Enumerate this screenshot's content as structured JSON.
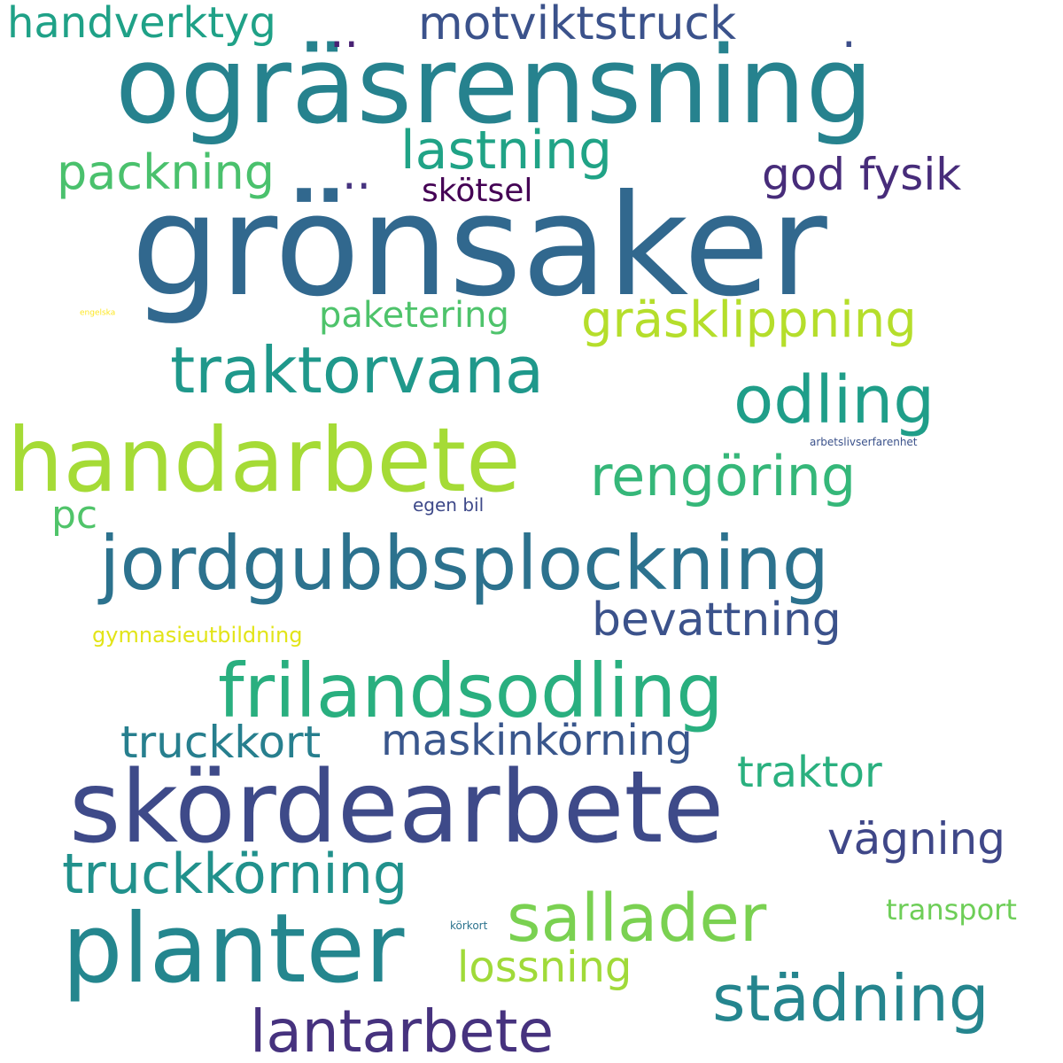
{
  "word_cloud": {
    "words": {
      "gronsaker": {
        "text": "grönsaker",
        "color": "#31688e"
      },
      "ograsrensning": {
        "text": "ogräsrensning",
        "color": "#26828e"
      },
      "skordearbete": {
        "text": "skördearbete",
        "color": "#3e4a89"
      },
      "planter": {
        "text": "planter",
        "color": "#24868e"
      },
      "handarbete": {
        "text": "handarbete",
        "color": "#a5db36"
      },
      "jordgubbsplockning": {
        "text": "jordgubbsplockning",
        "color": "#2c728e"
      },
      "frilandsodling": {
        "text": "frilandsodling",
        "color": "#29af7f"
      },
      "traktorvana": {
        "text": "traktorvana",
        "color": "#1f988b"
      },
      "odling": {
        "text": "odling",
        "color": "#1f9e89"
      },
      "sallader": {
        "text": "sallader",
        "color": "#7ad151"
      },
      "stadning": {
        "text": "städning",
        "color": "#25858e"
      },
      "lantarbete": {
        "text": "lantarbete",
        "color": "#46327e"
      },
      "rengoring": {
        "text": "rengöring",
        "color": "#35b779"
      },
      "truckkorning": {
        "text": "truckkörning",
        "color": "#21918c"
      },
      "lastning": {
        "text": "lastning",
        "color": "#20a386"
      },
      "grasklippning": {
        "text": "gräsklippning",
        "color": "#b5de2b"
      },
      "packning": {
        "text": "packning",
        "color": "#4ac16d"
      },
      "motviktstruck": {
        "text": "motviktstruck",
        "color": "#3b528b"
      },
      "handverktyg": {
        "text": "handverktyg",
        "color": "#1fa187"
      },
      "godfysik": {
        "text": "god fysik",
        "color": "#472c7a"
      },
      "bevattning": {
        "text": "bevattning",
        "color": "#3b528b"
      },
      "vagning": {
        "text": "vägning",
        "color": "#3f4788"
      },
      "truckkort": {
        "text": "truckkort",
        "color": "#277f8e"
      },
      "maskinkorning": {
        "text": "maskinkörning",
        "color": "#39568c"
      },
      "traktor": {
        "text": "traktor",
        "color": "#2ab07f"
      },
      "lossning": {
        "text": "lossning",
        "color": "#a0da39"
      },
      "paketering": {
        "text": "paketering",
        "color": "#4ec36b"
      },
      "pc": {
        "text": "pc",
        "color": "#50c46a"
      },
      "skotsel": {
        "text": "skötsel",
        "color": "#440154"
      },
      "transport": {
        "text": "transport",
        "color": "#6ece58"
      },
      "dots1": {
        "text": "..",
        "color": "#482173"
      },
      "dots2": {
        "text": ".",
        "color": "#3d4e8a"
      },
      "dots3": {
        "text": "..",
        "color": "#46337f"
      },
      "gymnasieutbildning": {
        "text": "gymnasieutbildning",
        "color": "#e2e418"
      },
      "egenbil": {
        "text": "egen bil",
        "color": "#3e4989"
      },
      "arbetslivserfarenhet": {
        "text": "arbetslivserfarenhet",
        "color": "#3b528b"
      },
      "korkort": {
        "text": "körkort",
        "color": "#2c738e"
      },
      "engelska": {
        "text": "engelska",
        "color": "#fde725"
      }
    }
  }
}
